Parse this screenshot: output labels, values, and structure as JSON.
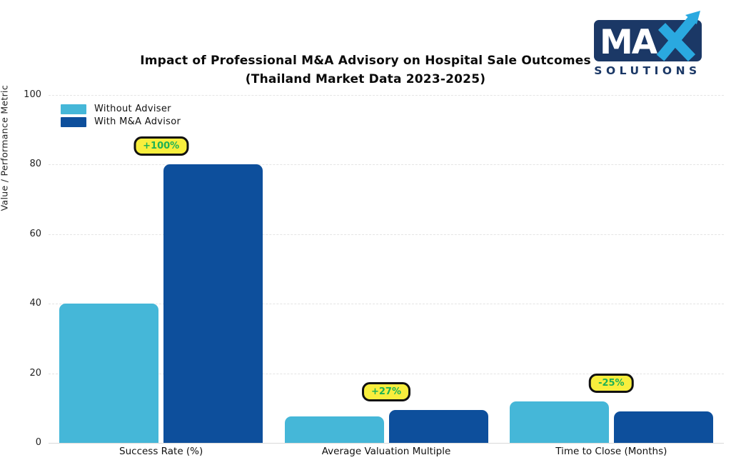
{
  "header": {
    "title_line1": "Impact of Professional M&A Advisory on Hospital Sale Outcomes",
    "title_line2": "(Thailand Market Data 2023-2025)"
  },
  "logo": {
    "main": "MAX",
    "sub": "SOLUTIONS",
    "navy": "#1b3866",
    "blue": "#2aa9e0"
  },
  "chart_data": {
    "type": "bar",
    "title": "Impact of Professional M&A Advisory on Hospital Sale Outcomes",
    "subtitle": "(Thailand Market Data 2023-2025)",
    "ylabel": "Value / Performance Metric",
    "xlabel": "",
    "ylim": [
      0,
      100
    ],
    "yticks": [
      0,
      20,
      40,
      60,
      80,
      100
    ],
    "grid": "horizontal",
    "legend_position": "top-left",
    "categories": [
      "Success Rate (%)",
      "Average Valuation Multiple",
      "Time to Close (Months)"
    ],
    "series": [
      {
        "name": "Without Adviser",
        "color": "#45b7d8",
        "values": [
          40,
          7.5,
          12
        ]
      },
      {
        "name": "With M&A Advisor",
        "color": "#0d4f9c",
        "values": [
          80,
          9.5,
          9
        ]
      }
    ],
    "annotations": [
      {
        "category": "Success Rate (%)",
        "label": "+100%"
      },
      {
        "category": "Average Valuation Multiple",
        "label": "+27%"
      },
      {
        "category": "Time to Close (Months)",
        "label": "-25%"
      }
    ],
    "annotation_style": {
      "bg": "#f8ee3d",
      "border": "#111111",
      "text_color": "#1fb155"
    }
  }
}
